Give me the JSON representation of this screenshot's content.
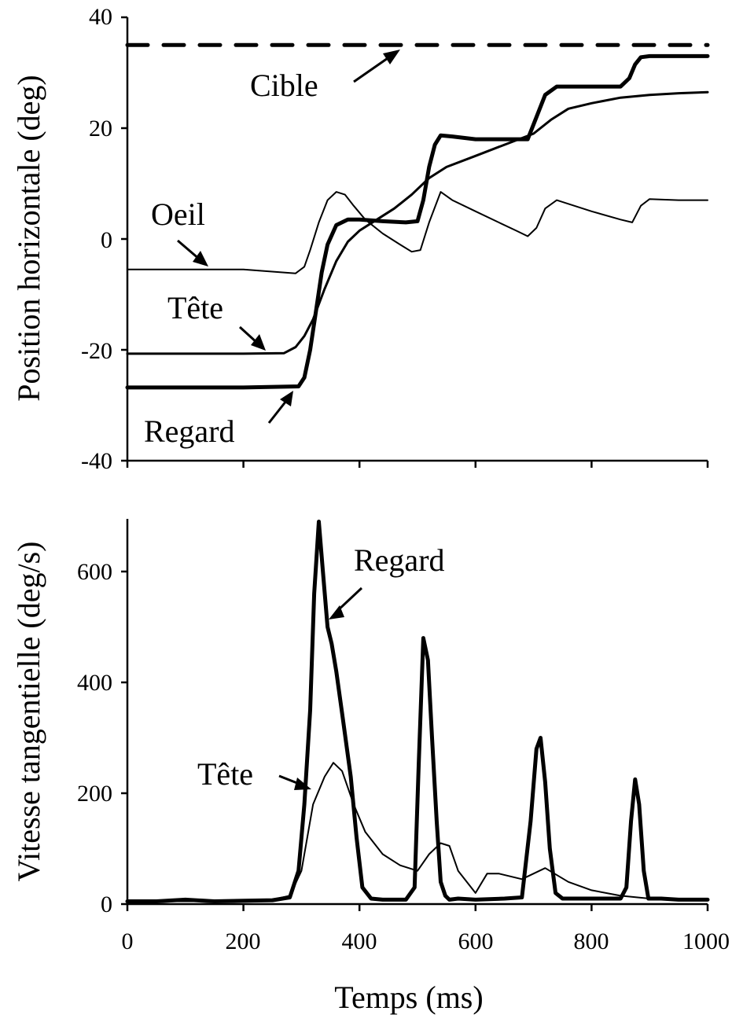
{
  "chart_data": [
    {
      "type": "line",
      "ylabel": "Position horizontale (deg)",
      "xlim": [
        0,
        1000
      ],
      "ylim": [
        -40,
        40
      ],
      "xticks": [
        0,
        200,
        400,
        600,
        800,
        1000
      ],
      "yticks": [
        40,
        20,
        0,
        -20,
        -40
      ],
      "ytick_labels": [
        "40",
        "20",
        "0",
        "-20",
        "-40"
      ],
      "series": [
        {
          "name": "Cible",
          "style": "dashed",
          "x": [
            0,
            1000
          ],
          "y": [
            35,
            35
          ]
        },
        {
          "name": "Oeil",
          "style": "thin",
          "x": [
            0,
            100,
            200,
            290,
            305,
            315,
            330,
            345,
            360,
            375,
            390,
            410,
            440,
            470,
            490,
            505,
            520,
            540,
            560,
            600,
            640,
            670,
            690,
            705,
            720,
            740,
            800,
            850,
            870,
            885,
            900,
            950,
            1000
          ],
          "y": [
            -5.5,
            -5.5,
            -5.5,
            -6.2,
            -5,
            -2,
            3,
            7,
            8.5,
            8,
            6,
            3.5,
            1,
            -1,
            -2.3,
            -2,
            3,
            8.5,
            7,
            5,
            3,
            1.5,
            0.5,
            2,
            5.5,
            7,
            5,
            3.5,
            3,
            6,
            7.2,
            7,
            7
          ]
        },
        {
          "name": "Tête",
          "style": "medium",
          "x": [
            0,
            200,
            270,
            290,
            305,
            320,
            340,
            360,
            380,
            400,
            430,
            460,
            490,
            520,
            550,
            600,
            650,
            700,
            730,
            760,
            800,
            850,
            900,
            950,
            1000
          ],
          "y": [
            -20.7,
            -20.7,
            -20.6,
            -19.5,
            -17.5,
            -14.5,
            -9,
            -4,
            -0.5,
            1.5,
            3.5,
            5.5,
            8,
            11,
            13,
            15,
            17,
            19,
            21.5,
            23.5,
            24.5,
            25.5,
            26,
            26.3,
            26.5
          ]
        },
        {
          "name": "Regard",
          "style": "thick",
          "x": [
            0,
            200,
            295,
            305,
            315,
            325,
            335,
            345,
            360,
            380,
            400,
            440,
            480,
            500,
            510,
            520,
            530,
            540,
            560,
            600,
            650,
            690,
            705,
            720,
            740,
            800,
            850,
            865,
            875,
            885,
            900,
            950,
            1000
          ],
          "y": [
            -26.8,
            -26.8,
            -26.6,
            -25,
            -20,
            -13,
            -6,
            -1,
            2.5,
            3.5,
            3.5,
            3.2,
            3,
            3.2,
            7,
            13,
            17,
            18.7,
            18.5,
            18,
            18,
            18,
            22,
            26,
            27.5,
            27.5,
            27.5,
            29,
            31.5,
            32.8,
            33,
            33,
            33
          ]
        }
      ],
      "annotations": [
        "Cible",
        "Oeil",
        "Tête",
        "Regard"
      ]
    },
    {
      "type": "line",
      "xlabel": "Temps (ms)",
      "ylabel": "Vitesse tangentielle (deg/s)",
      "xlim": [
        0,
        1000
      ],
      "ylim": [
        0,
        700
      ],
      "xticks": [
        0,
        200,
        400,
        600,
        800,
        1000
      ],
      "xtick_labels": [
        "0",
        "200",
        "400",
        "600",
        "800",
        "1000"
      ],
      "yticks": [
        0,
        200,
        400,
        600
      ],
      "ytick_labels": [
        "0",
        "200",
        "400",
        "600"
      ],
      "series": [
        {
          "name": "Regard",
          "style": "thick",
          "x": [
            0,
            50,
            100,
            150,
            200,
            250,
            280,
            295,
            305,
            315,
            322,
            330,
            337,
            345,
            352,
            360,
            372,
            385,
            395,
            405,
            420,
            440,
            460,
            480,
            495,
            502,
            510,
            518,
            525,
            533,
            540,
            548,
            555,
            570,
            600,
            650,
            680,
            695,
            705,
            712,
            720,
            728,
            738,
            750,
            800,
            850,
            860,
            868,
            875,
            882,
            890,
            898,
            920,
            950,
            1000
          ],
          "y": [
            5,
            5,
            8,
            5,
            6,
            7,
            12,
            60,
            180,
            350,
            560,
            690,
            600,
            500,
            470,
            420,
            330,
            230,
            120,
            30,
            10,
            8,
            8,
            8,
            30,
            250,
            480,
            440,
            300,
            150,
            40,
            15,
            8,
            10,
            8,
            10,
            12,
            150,
            280,
            300,
            220,
            100,
            20,
            10,
            10,
            10,
            30,
            150,
            225,
            180,
            60,
            10,
            10,
            8,
            8
          ]
        },
        {
          "name": "Tête",
          "style": "thin",
          "x": [
            0,
            100,
            200,
            250,
            280,
            300,
            320,
            340,
            355,
            370,
            390,
            410,
            440,
            470,
            500,
            520,
            540,
            555,
            570,
            600,
            620,
            640,
            680,
            720,
            760,
            800,
            850,
            900,
            950,
            1000
          ],
          "y": [
            5,
            5,
            5,
            8,
            15,
            60,
            180,
            230,
            255,
            240,
            180,
            130,
            90,
            70,
            60,
            90,
            110,
            105,
            60,
            20,
            55,
            55,
            45,
            65,
            40,
            25,
            15,
            10,
            8,
            8
          ]
        }
      ],
      "annotations": [
        "Regard",
        "Tête"
      ]
    }
  ]
}
